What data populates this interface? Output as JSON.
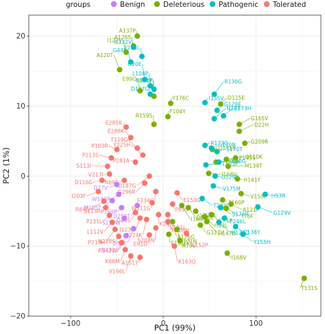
{
  "chart_data": {
    "type": "scatter",
    "title": "",
    "xlabel": "PC1 (99%)",
    "ylabel": "PC2 (1%)",
    "xlim": [
      -145,
      170
    ],
    "ylim": [
      -20,
      23
    ],
    "xticks": [
      -100,
      0,
      100
    ],
    "xtick_labels": [
      "−100",
      "0",
      "100"
    ],
    "yticks": [
      -20,
      -10,
      0,
      10,
      20
    ],
    "ytick_labels": [
      "−20",
      "−10",
      "0",
      "10",
      "20"
    ],
    "grid": true,
    "legend": {
      "title": "groups",
      "placement": "top",
      "entries": [
        "Benign",
        "Deleterious",
        "Pathogenic",
        "Tolerated"
      ]
    },
    "colors": {
      "Benign": "#c77cff",
      "Deleterious": "#7cae00",
      "Pathogenic": "#00bfc4",
      "Tolerated": "#f8766d",
      "panel_background": "#ffffff",
      "grid": "#ebebeb",
      "axis": "#333333"
    },
    "series": [
      {
        "name": "Benign",
        "points": [
          {
            "x": -45,
            "y": -4.5,
            "label": "P169P"
          },
          {
            "x": -48,
            "y": -2.6,
            "label": "W149R"
          },
          {
            "x": -55,
            "y": -3.5,
            "label": "M205T"
          },
          {
            "x": -40,
            "y": -8.5,
            "label": "N131S"
          },
          {
            "x": -42,
            "y": -6.0,
            "label": "S179W"
          },
          {
            "x": -50,
            "y": -1.2,
            "label": "D77V"
          },
          {
            "x": -28,
            "y": -4.2,
            "label": "D252T"
          },
          {
            "x": -32,
            "y": -7.5,
            "label": "D52E"
          }
        ]
      },
      {
        "name": "Deleterious",
        "points": [
          {
            "x": -28,
            "y": 20,
            "label": "A137P"
          },
          {
            "x": -32,
            "y": 18.6,
            "label": "A126S"
          },
          {
            "x": -40,
            "y": 17.7,
            "label": "I122V"
          },
          {
            "x": -47,
            "y": 15.2,
            "label": "A120T"
          },
          {
            "x": 5,
            "y": 8.5,
            "label": "F104Y"
          },
          {
            "x": -10,
            "y": 7.4,
            "label": "R159S"
          },
          {
            "x": -25,
            "y": 12.2,
            "label": "E99Q"
          },
          {
            "x": -10,
            "y": 11.4,
            "label": "F81Y"
          },
          {
            "x": 8,
            "y": 10.4,
            "label": "Y176C"
          },
          {
            "x": 62,
            "y": 10.3,
            "label": "D115E"
          },
          {
            "x": 82,
            "y": 7.4,
            "label": "G165V"
          },
          {
            "x": 82,
            "y": 6.4,
            "label": "D22H"
          },
          {
            "x": 88,
            "y": 4.7,
            "label": "G209R"
          },
          {
            "x": 78,
            "y": 2.6,
            "label": "Q110K"
          },
          {
            "x": 68,
            "y": 2.4,
            "label": "F145S"
          },
          {
            "x": 70,
            "y": 1.4,
            "label": "M134T"
          },
          {
            "x": 80,
            "y": -0.4,
            "label": "H141Y"
          },
          {
            "x": 84,
            "y": -2.5,
            "label": "V158I"
          },
          {
            "x": 73,
            "y": -4.0,
            "label": "A121P"
          },
          {
            "x": 68,
            "y": -4.6,
            "label": "Y76F"
          },
          {
            "x": 64,
            "y": -3.4,
            "label": "T160P"
          },
          {
            "x": 52,
            "y": -5.5,
            "label": "C71F"
          },
          {
            "x": 45,
            "y": -5.8,
            "label": "H93L"
          },
          {
            "x": 47,
            "y": -6.5,
            "label": "H147D"
          },
          {
            "x": 35,
            "y": -5.0,
            "label": "V222L"
          },
          {
            "x": 40,
            "y": -7.0,
            "label": "G127V"
          },
          {
            "x": 27,
            "y": -4.5,
            "label": "D116E"
          },
          {
            "x": 20,
            "y": -4.2,
            "label": "I168I"
          },
          {
            "x": 18,
            "y": -9.2,
            "label": "A79V"
          },
          {
            "x": 6,
            "y": -8.3,
            "label": "E191D"
          },
          {
            "x": 15,
            "y": -7.6,
            "label": "I101N"
          },
          {
            "x": 10,
            "y": -6.5,
            "label": "A126G"
          },
          {
            "x": 53,
            "y": 3.8,
            "label": "Q171K"
          },
          {
            "x": 57,
            "y": 2.0,
            "label": "D94N"
          },
          {
            "x": 49,
            "y": 0.4,
            "label": "I168V"
          },
          {
            "x": 152,
            "y": -14.6,
            "label": "T131S"
          },
          {
            "x": 69,
            "y": -11.0,
            "label": "I168V"
          }
        ]
      },
      {
        "name": "Pathogenic",
        "points": [
          {
            "x": -32,
            "y": 18.4,
            "label": "G132V"
          },
          {
            "x": -23,
            "y": 17.1,
            "label": "F241L"
          },
          {
            "x": -35,
            "y": 16.3,
            "label": "G44R"
          },
          {
            "x": -20,
            "y": 13.8,
            "label": "G20E"
          },
          {
            "x": -14,
            "y": 11.7,
            "label": "D107G"
          },
          {
            "x": -10,
            "y": 12.4,
            "label": "R173P"
          },
          {
            "x": -14,
            "y": 12.9,
            "label": "L108P"
          },
          {
            "x": 55,
            "y": 11.7,
            "label": "R130G"
          },
          {
            "x": 45,
            "y": 10.5,
            "label": "I135V"
          },
          {
            "x": 58,
            "y": 9.4,
            "label": "G129E"
          },
          {
            "x": 65,
            "y": 8.6,
            "label": "R173H"
          },
          {
            "x": 55,
            "y": 8.2,
            "label": "N12T"
          },
          {
            "x": 45,
            "y": 4.4,
            "label": "R173G"
          },
          {
            "x": 52,
            "y": 4.0,
            "label": "I170N"
          },
          {
            "x": 60,
            "y": 2.0,
            "label": "E90G"
          },
          {
            "x": 46,
            "y": 1.6,
            "label": "L103P"
          },
          {
            "x": 56,
            "y": 0.0,
            "label": "G129R"
          },
          {
            "x": 54,
            "y": -1.4,
            "label": "V175M"
          },
          {
            "x": 62,
            "y": -4.5,
            "label": "S176R"
          },
          {
            "x": 60,
            "y": -6.6,
            "label": "H123Q"
          },
          {
            "x": 66,
            "y": -6.0,
            "label": "P246L"
          },
          {
            "x": 78,
            "y": -7.2,
            "label": "C136Y"
          },
          {
            "x": 86,
            "y": -8.3,
            "label": "Y155H"
          },
          {
            "x": 102,
            "y": -4.4,
            "label": "G129V"
          },
          {
            "x": 110,
            "y": -2.6,
            "label": "H93R"
          },
          {
            "x": 58,
            "y": 3.5,
            "label": "S170T"
          },
          {
            "x": 42,
            "y": -3.2,
            "label": "T202I"
          }
        ]
      },
      {
        "name": "Tolerated",
        "points": [
          {
            "x": -40,
            "y": 7.0,
            "label": "E285K"
          },
          {
            "x": -35,
            "y": 5.5,
            "label": "E288K"
          },
          {
            "x": -28,
            "y": 4.0,
            "label": "T119G"
          },
          {
            "x": -22,
            "y": 3.0,
            "label": "Y225H"
          },
          {
            "x": -30,
            "y": 2.0,
            "label": "P281A"
          },
          {
            "x": -50,
            "y": 3.8,
            "label": "P103R"
          },
          {
            "x": -56,
            "y": 2.6,
            "label": "P213S"
          },
          {
            "x": -60,
            "y": 1.4,
            "label": "S113I"
          },
          {
            "x": -58,
            "y": 0.3,
            "label": "V217I"
          },
          {
            "x": -66,
            "y": -0.6,
            "label": "D116G"
          },
          {
            "x": -70,
            "y": -2.2,
            "label": "I203F"
          },
          {
            "x": -64,
            "y": -3.6,
            "label": "R84G"
          },
          {
            "x": -62,
            "y": -4.5,
            "label": "S113R"
          },
          {
            "x": -58,
            "y": -5.6,
            "label": "P231L"
          },
          {
            "x": -55,
            "y": -6.6,
            "label": "L112V"
          },
          {
            "x": -52,
            "y": -7.6,
            "label": "P213H"
          },
          {
            "x": -48,
            "y": -8.6,
            "label": "N228S"
          },
          {
            "x": -45,
            "y": -9.5,
            "label": "R142W"
          },
          {
            "x": -41,
            "y": -10.5,
            "label": "K66M"
          },
          {
            "x": -35,
            "y": -11.4,
            "label": "V166L"
          },
          {
            "x": -25,
            "y": -11.6,
            "label": "A151T"
          },
          {
            "x": -15,
            "y": -8.4,
            "label": "E91D"
          },
          {
            "x": -8,
            "y": -7.4,
            "label": "S203N"
          },
          {
            "x": -18,
            "y": -6.2,
            "label": "I224K"
          },
          {
            "x": -12,
            "y": -3.8,
            "label": "W111G"
          },
          {
            "x": -8,
            "y": -2.2,
            "label": "F234G"
          },
          {
            "x": -20,
            "y": -1.0,
            "label": "G296R"
          },
          {
            "x": -15,
            "y": 0.0,
            "label": "D187G"
          },
          {
            "x": -42,
            "y": -0.6,
            "label": "N69S"
          },
          {
            "x": -30,
            "y": -5.2,
            "label": "G44S"
          },
          {
            "x": -25,
            "y": -6.0,
            "label": "I123N"
          },
          {
            "x": 5,
            "y": -5.5,
            "label": "R308H"
          },
          {
            "x": 10,
            "y": -4.0,
            "label": "P89S"
          },
          {
            "x": 15,
            "y": -2.4,
            "label": "E150G"
          },
          {
            "x": 25,
            "y": -8.2,
            "label": "L152P"
          },
          {
            "x": 12,
            "y": -10.0,
            "label": "K163Q"
          },
          {
            "x": 5,
            "y": -6.5,
            "label": "V191L"
          },
          {
            "x": -5,
            "y": -5.5,
            "label": "K147I"
          }
        ]
      }
    ]
  }
}
